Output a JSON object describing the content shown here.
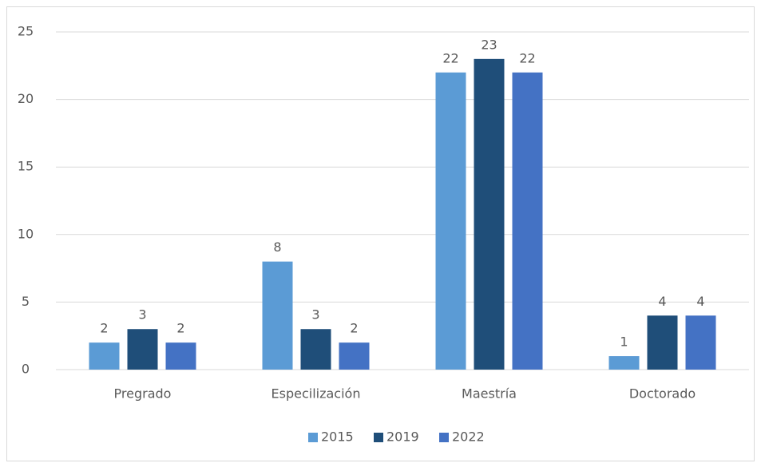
{
  "chart_data": {
    "type": "bar",
    "categories": [
      "Pregrado",
      "Especilización",
      "Maestría",
      "Doctorado"
    ],
    "series": [
      {
        "name": "2015",
        "color": "#5b9bd5",
        "values": [
          2,
          8,
          22,
          1
        ]
      },
      {
        "name": "2019",
        "color": "#1f4e79",
        "values": [
          3,
          3,
          23,
          4
        ]
      },
      {
        "name": "2022",
        "color": "#4472c4",
        "values": [
          2,
          2,
          22,
          4
        ]
      }
    ],
    "ylim": [
      0,
      25
    ],
    "yticks": [
      0,
      5,
      10,
      15,
      20,
      25
    ],
    "grid": true,
    "legend": "bottom"
  }
}
